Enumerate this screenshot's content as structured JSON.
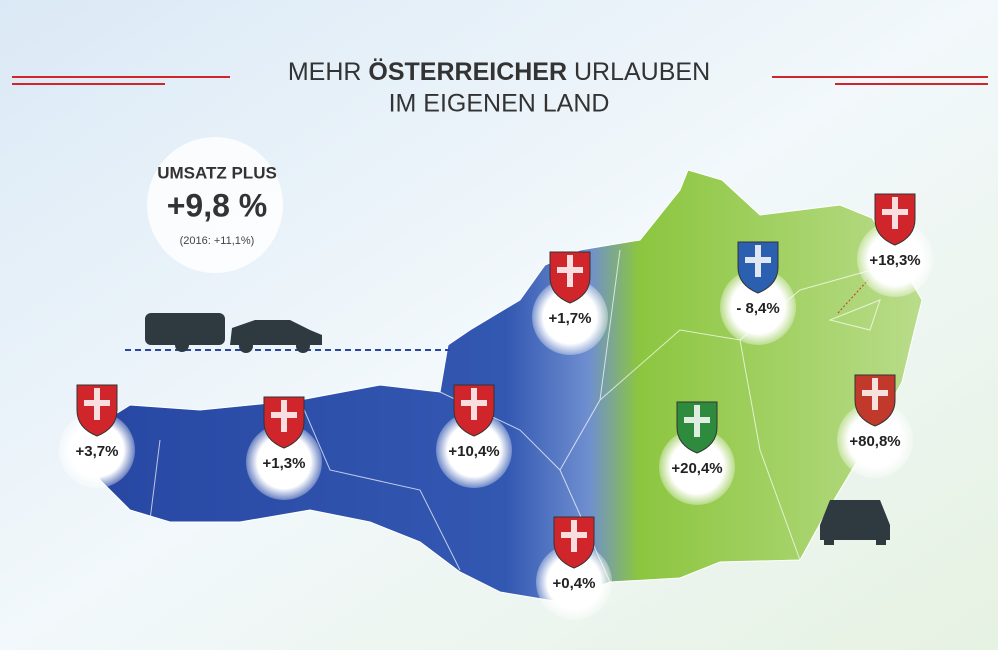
{
  "header": {
    "title_line1": {
      "part1": "MEHR",
      "bold": "ÖSTERREICHER",
      "part2": "URLAUBEN"
    },
    "title_line2": "IM EIGENEN LAND"
  },
  "summary": {
    "label": "UMSATZ PLUS",
    "value": "+9,8 %",
    "note": "(2016: +11,1%)"
  },
  "regions": [
    {
      "label": "+3,7%"
    },
    {
      "label": "+1,3%"
    },
    {
      "label": "+10,4%"
    },
    {
      "label": "+1,7%"
    },
    {
      "label": "- 8,4%"
    },
    {
      "label": "+18,3%"
    },
    {
      "label": "+20,4%"
    },
    {
      "label": "+80,8%"
    },
    {
      "label": "+0,4%"
    }
  ]
}
